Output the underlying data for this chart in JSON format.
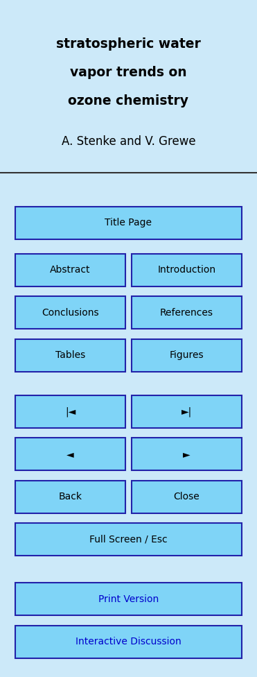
{
  "bg_color": "#cce9f9",
  "title_lines": [
    "stratospheric water",
    "vapor trends on",
    "ozone chemistry"
  ],
  "author": "A. Stenke and V. Grewe",
  "title_color": "#000000",
  "author_color": "#000000",
  "title_fontsize": 13.5,
  "author_fontsize": 12,
  "btn_bg": "#7fd4f7",
  "btn_border": "#2222aa",
  "btn_text_color": "#000000",
  "btn_blue_text": "#0000cc",
  "full_btn": [
    {
      "label": "Title Page",
      "span": "full",
      "text_color": "#000000"
    },
    {
      "label": "Full Screen / Esc",
      "span": "full",
      "text_color": "#000000"
    },
    {
      "label": "Print Version",
      "span": "full",
      "text_color": "#0000cc"
    },
    {
      "label": "Interactive Discussion",
      "span": "full",
      "text_color": "#0000cc"
    }
  ],
  "half_btns": [
    [
      {
        "label": "Abstract",
        "text_color": "#000000"
      },
      {
        "label": "Introduction",
        "text_color": "#000000"
      }
    ],
    [
      {
        "label": "Conclusions",
        "text_color": "#000000"
      },
      {
        "label": "References",
        "text_color": "#000000"
      }
    ],
    [
      {
        "label": "Tables",
        "text_color": "#000000"
      },
      {
        "label": "Figures",
        "text_color": "#000000"
      }
    ],
    [
      {
        "label": "|◄",
        "text_color": "#000000"
      },
      {
        "label": "►|",
        "text_color": "#000000"
      }
    ],
    [
      {
        "label": "◄",
        "text_color": "#000000"
      },
      {
        "label": "►",
        "text_color": "#000000"
      }
    ],
    [
      {
        "label": "Back",
        "text_color": "#000000"
      },
      {
        "label": "Close",
        "text_color": "#000000"
      }
    ]
  ],
  "separator_color": "#333333",
  "fig_width": 3.71,
  "fig_height": 9.76
}
